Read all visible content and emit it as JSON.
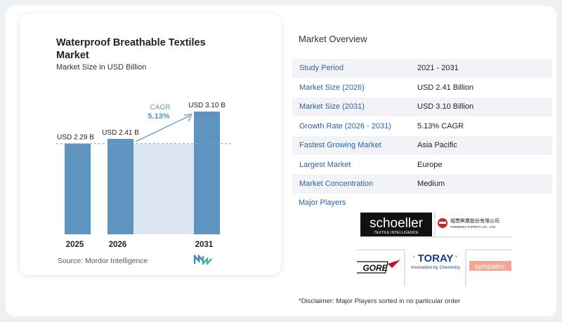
{
  "chart": {
    "title": "Waterproof Breathable Textiles Market",
    "subtitle": "Market Size in USD Billion",
    "cagr_label": "CAGR",
    "cagr_value": "5.13%",
    "source": "Source:  Mordor Intelligence"
  },
  "chart_data": {
    "type": "bar",
    "categories": [
      "2025",
      "2026",
      "2031"
    ],
    "values": [
      2.29,
      2.41,
      3.1
    ],
    "value_labels": [
      "USD 2.29 B",
      "USD 2.41 B",
      "USD 3.10 B"
    ],
    "title": "Waterproof Breathable Textiles Market",
    "ylabel": "Market Size in USD Billion",
    "ylim": [
      0,
      3.1
    ],
    "grid": false,
    "colors": {
      "bar": "#5f93c0",
      "band": "#dbe6f1",
      "arrow": "#5f93c0",
      "reference_line": "#7fa5c9"
    }
  },
  "overview": {
    "title": "Market Overview",
    "rows": [
      {
        "key": "Study Period",
        "value": "2021 - 2031"
      },
      {
        "key": "Market Size (2026)",
        "value": "USD 2.41 Billion"
      },
      {
        "key": "Market Size (2031)",
        "value": "USD 3.10 Billion"
      },
      {
        "key": "Growth Rate (2026 - 2031)",
        "value": "5.13% CAGR"
      },
      {
        "key": "Fastest Growing Market",
        "value": "Asia Pacific"
      },
      {
        "key": "Largest Market",
        "value": "Europe"
      },
      {
        "key": "Market Concentration",
        "value": "Medium"
      }
    ]
  },
  "players": {
    "title": "Major Players",
    "logos": [
      {
        "name": "schoeller",
        "tagline": "TEXTILE INTELLIGENCE"
      },
      {
        "name": "福懋興業股份有限公司",
        "tagline": "FORMOSA TAFFETA CO., LTD."
      },
      {
        "name": "GORE"
      },
      {
        "name": "TORAY",
        "tagline": "Innovation by Chemistry"
      },
      {
        "name": "sympatex"
      }
    ]
  },
  "disclaimer": "*Disclaimer: Major Players sorted in no particular order"
}
